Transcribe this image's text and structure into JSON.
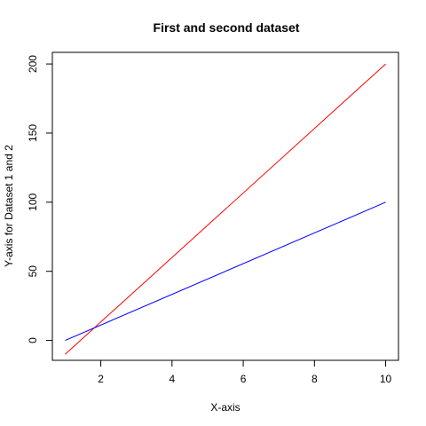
{
  "chart_data": {
    "type": "line",
    "title": "First and second dataset",
    "xlabel": "X-axis",
    "ylabel": "Y-axis for Dataset 1 and 2",
    "xlim": [
      0.64,
      10.36
    ],
    "ylim": [
      -14.4,
      208.4
    ],
    "x_ticks": [
      2,
      4,
      6,
      8,
      10
    ],
    "y_ticks": [
      0,
      50,
      100,
      150,
      200
    ],
    "grid": false,
    "series": [
      {
        "x": [
          1,
          10
        ],
        "values": [
          -10,
          200
        ],
        "color": "#ff0000"
      },
      {
        "x": [
          1,
          10
        ],
        "values": [
          0,
          100
        ],
        "color": "#0000ff"
      }
    ]
  }
}
